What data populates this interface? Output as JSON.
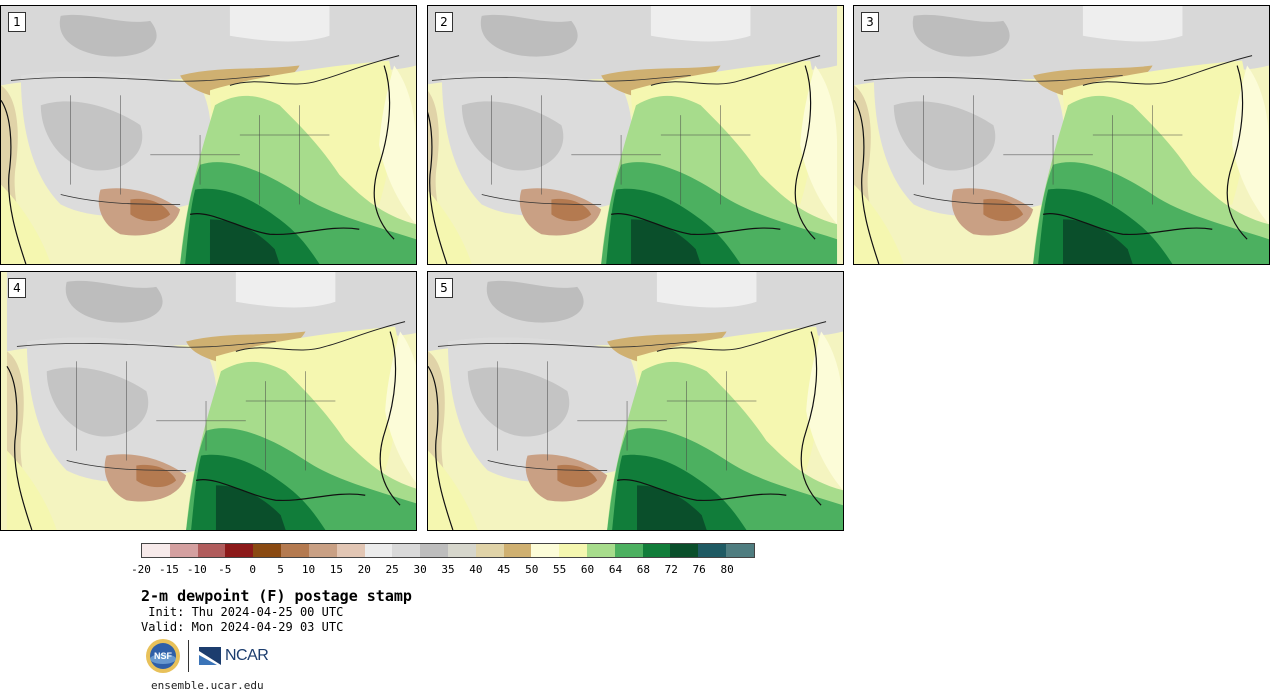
{
  "panels": [
    {
      "label": "1"
    },
    {
      "label": "2"
    },
    {
      "label": "3"
    },
    {
      "label": "4"
    },
    {
      "label": "5"
    }
  ],
  "colorbar": {
    "colors": [
      "#f7eaea",
      "#d4a0a0",
      "#b05c5c",
      "#8c1a1a",
      "#8a4a12",
      "#b47a50",
      "#c9a084",
      "#e2c6b4",
      "#ececec",
      "#d9d9d9",
      "#bdbdbd",
      "#d6d6cc",
      "#e0d3a8",
      "#cfb071",
      "#fcfcd8",
      "#f5f7b0",
      "#a7dc8c",
      "#4cb060",
      "#117d3a",
      "#0a4f2b",
      "#1f5a63",
      "#4f7d80"
    ],
    "ticks": [
      "-20",
      "-15",
      "-10",
      "-5",
      "0",
      "5",
      "10",
      "15",
      "20",
      "25",
      "30",
      "35",
      "40",
      "45",
      "50",
      "55",
      "60",
      "64",
      "68",
      "72",
      "76",
      "80"
    ]
  },
  "title": "2-m dewpoint (F) postage stamp",
  "init": " Init: Thu 2024-04-25 00 UTC",
  "valid": "Valid: Mon 2024-04-29 03 UTC",
  "logo": {
    "ncar": "NCAR",
    "nsf": "NSF"
  },
  "site": "ensemble.ucar.edu"
}
